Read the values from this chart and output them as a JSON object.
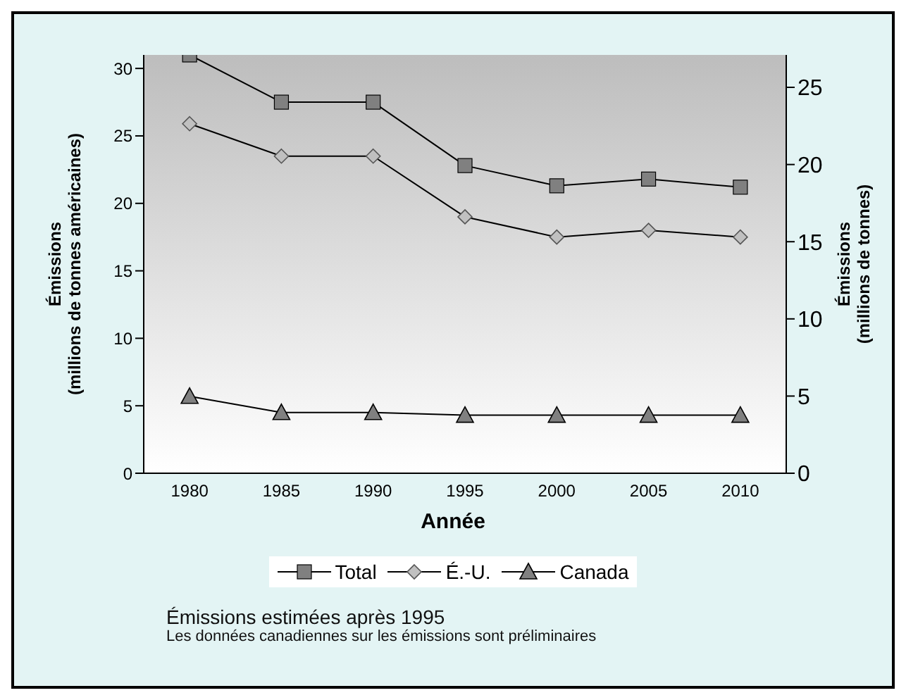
{
  "chart_data": {
    "type": "line",
    "xlabel": "Année",
    "ylabel": "Émissions\n(millions de tonnes américaines)",
    "y2label": "Émissions\n(millions de tonnes)",
    "categories": [
      "1980",
      "1985",
      "1990",
      "1995",
      "2000",
      "2005",
      "2010"
    ],
    "series": [
      {
        "name": "Total",
        "color": "#000000",
        "marker": "square",
        "values": [
          31,
          27.5,
          27.5,
          22.8,
          21.3,
          21.8,
          21.2
        ]
      },
      {
        "name": "É.-U.",
        "color": "#000000",
        "marker": "diamond",
        "values": [
          25.9,
          23.5,
          23.5,
          19,
          17.5,
          18,
          17.5
        ]
      },
      {
        "name": "Canada",
        "color": "#000000",
        "marker": "triangle",
        "values": [
          5.7,
          4.5,
          4.5,
          4.3,
          4.3,
          4.3,
          4.3
        ]
      }
    ],
    "ylim": [
      0,
      31
    ],
    "yticks": [
      0,
      5,
      10,
      15,
      20,
      25,
      30
    ],
    "y2lim": [
      0,
      27.1
    ],
    "y2ticks": [
      0,
      5,
      10,
      15,
      20,
      25
    ],
    "legend": "bottom",
    "grid": false,
    "annotations": [
      "Émissions estimées après 1995",
      "Les données canadiennes sur les émissions sont préliminaires"
    ]
  }
}
